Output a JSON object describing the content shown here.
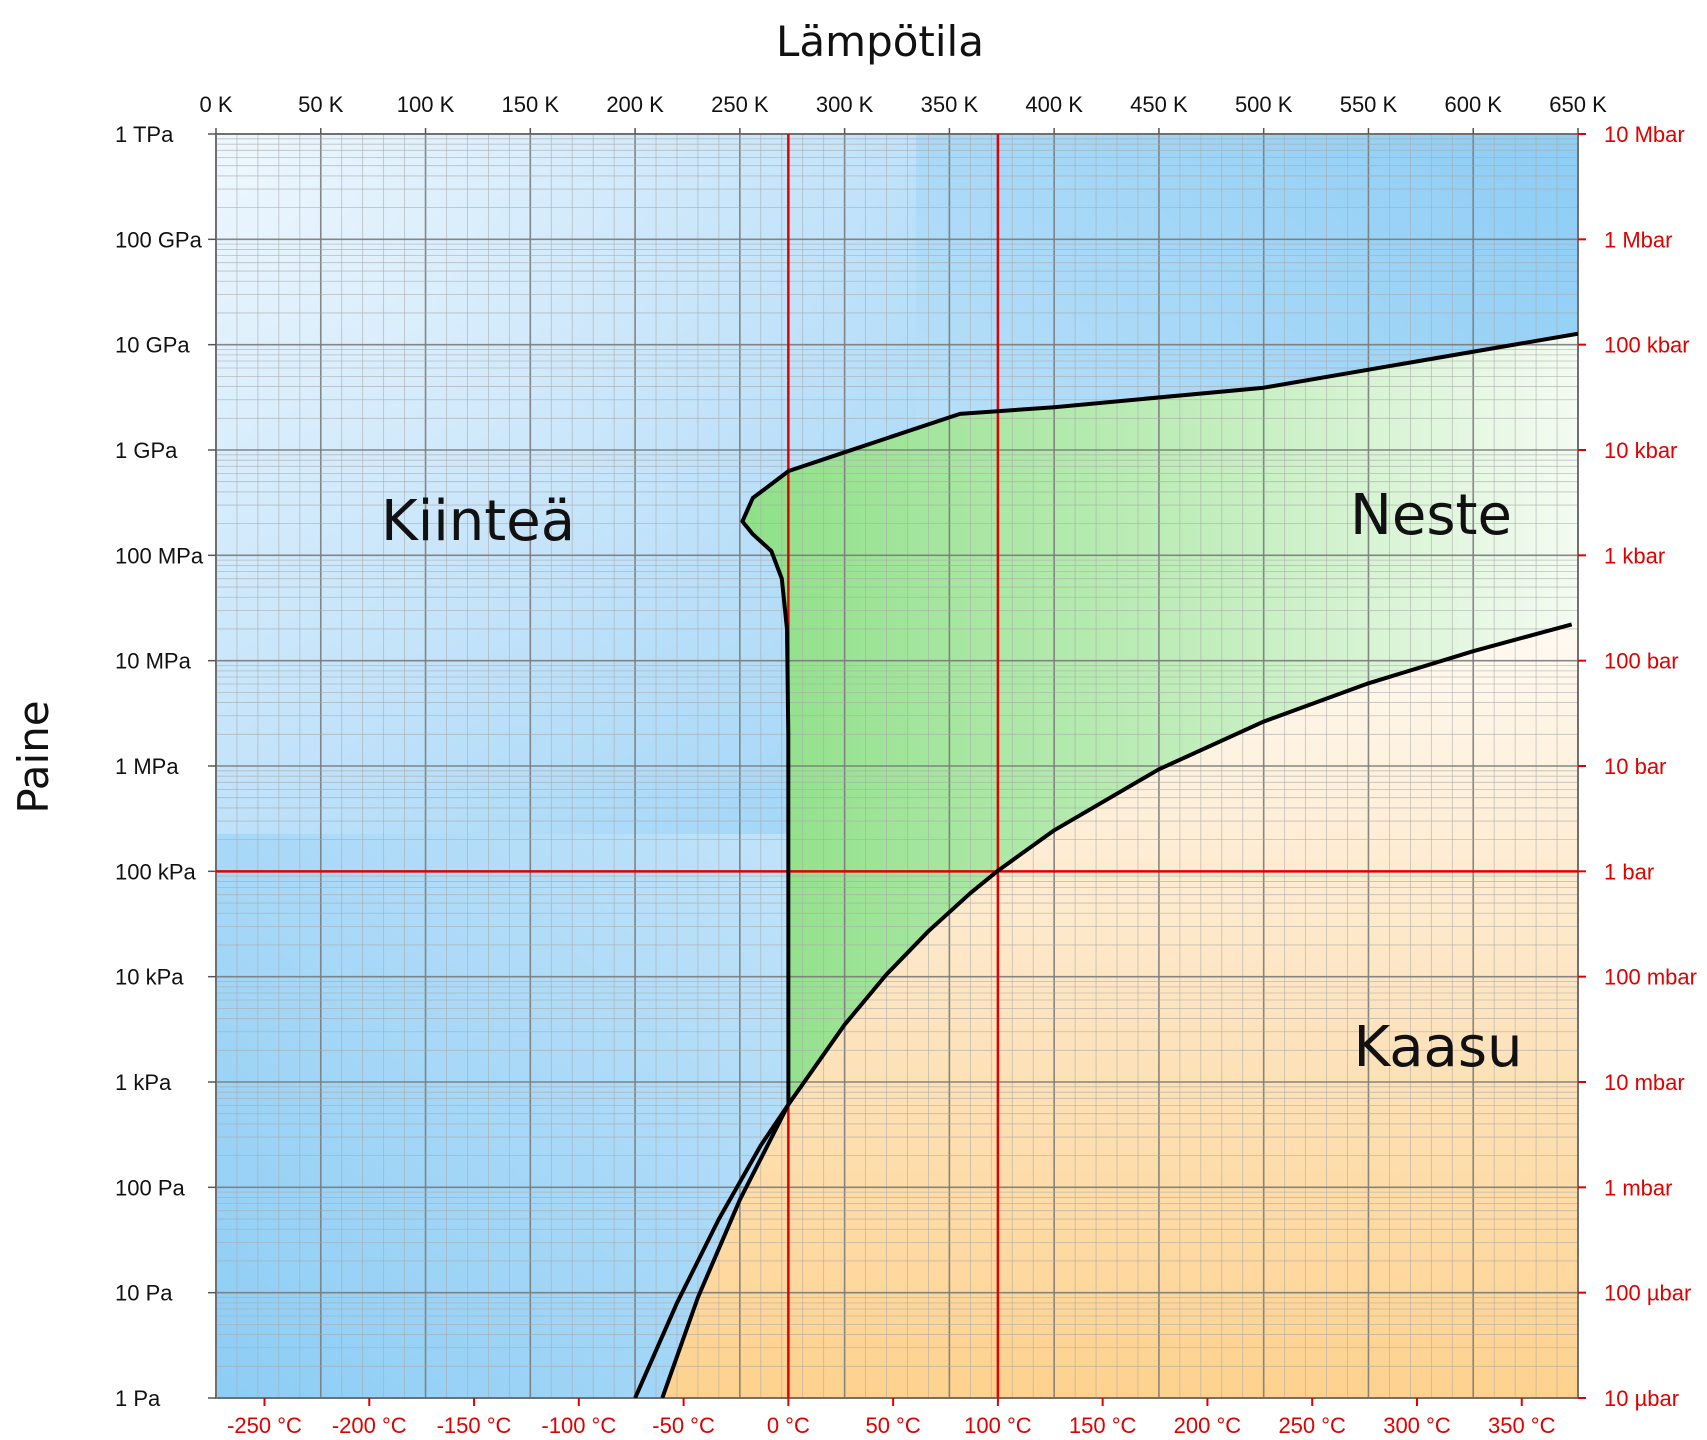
{
  "chart_data": {
    "type": "line",
    "title": "",
    "xlabel": "Lämpötila",
    "ylabel": "Paine",
    "x_unit": "K",
    "y_unit": "Pa",
    "xlim": [
      0,
      650
    ],
    "ylim": [
      1,
      1000000000000
    ],
    "yscale": "log",
    "grid": true,
    "kelvin_ticks": [
      {
        "value": 0,
        "label": "0 K"
      },
      {
        "value": 50,
        "label": "50 K"
      },
      {
        "value": 100,
        "label": "100 K"
      },
      {
        "value": 150,
        "label": "150 K"
      },
      {
        "value": 200,
        "label": "200 K"
      },
      {
        "value": 250,
        "label": "250 K"
      },
      {
        "value": 300,
        "label": "300 K"
      },
      {
        "value": 350,
        "label": "350 K"
      },
      {
        "value": 400,
        "label": "400 K"
      },
      {
        "value": 450,
        "label": "450 K"
      },
      {
        "value": 500,
        "label": "500 K"
      },
      {
        "value": 550,
        "label": "550 K"
      },
      {
        "value": 600,
        "label": "600 K"
      },
      {
        "value": 650,
        "label": "650 K"
      }
    ],
    "celsius_ticks": [
      {
        "value": 23.15,
        "label": "-250 °C"
      },
      {
        "value": 73.15,
        "label": "-200 °C"
      },
      {
        "value": 123.15,
        "label": "-150 °C"
      },
      {
        "value": 173.15,
        "label": "-100 °C"
      },
      {
        "value": 223.15,
        "label": "-50 °C"
      },
      {
        "value": 273.15,
        "label": "0 °C"
      },
      {
        "value": 323.15,
        "label": "50 °C"
      },
      {
        "value": 373.15,
        "label": "100 °C"
      },
      {
        "value": 423.15,
        "label": "150 °C"
      },
      {
        "value": 473.15,
        "label": "200 °C"
      },
      {
        "value": 523.15,
        "label": "250 °C"
      },
      {
        "value": 573.15,
        "label": "300 °C"
      },
      {
        "value": 623.15,
        "label": "350 °C"
      }
    ],
    "pascal_ticks": [
      {
        "value": 1000000000000,
        "label": "1 TPa"
      },
      {
        "value": 100000000000,
        "label": "100 GPa"
      },
      {
        "value": 10000000000,
        "label": "10 GPa"
      },
      {
        "value": 1000000000,
        "label": "1 GPa"
      },
      {
        "value": 100000000,
        "label": "100 MPa"
      },
      {
        "value": 10000000,
        "label": "10 MPa"
      },
      {
        "value": 1000000,
        "label": "1 MPa"
      },
      {
        "value": 100000,
        "label": "100 kPa"
      },
      {
        "value": 10000,
        "label": "10 kPa"
      },
      {
        "value": 1000,
        "label": "1 kPa"
      },
      {
        "value": 100,
        "label": "100 Pa"
      },
      {
        "value": 10,
        "label": "10 Pa"
      },
      {
        "value": 1,
        "label": "1 Pa"
      }
    ],
    "bar_ticks": [
      {
        "value": 1000000000000,
        "label": "10 Mbar"
      },
      {
        "value": 100000000000,
        "label": "1 Mbar"
      },
      {
        "value": 10000000000,
        "label": "100 kbar"
      },
      {
        "value": 1000000000,
        "label": "10 kbar"
      },
      {
        "value": 100000000,
        "label": "1 kbar"
      },
      {
        "value": 10000000,
        "label": "100 bar"
      },
      {
        "value": 1000000,
        "label": "10 bar"
      },
      {
        "value": 100000,
        "label": "1 bar"
      },
      {
        "value": 10000,
        "label": "100 mbar"
      },
      {
        "value": 1000,
        "label": "10 mbar"
      },
      {
        "value": 100,
        "label": "1 mbar"
      },
      {
        "value": 10,
        "label": "100 µbar"
      },
      {
        "value": 1,
        "label": "10 µbar"
      }
    ],
    "reference_lines": {
      "temperatures_K": [
        273.15,
        373.15
      ],
      "pressures_Pa": [
        100000
      ],
      "color": "#e00000"
    },
    "boundaries": {
      "vaporization": [
        [
          200,
          1.0
        ],
        [
          220,
          8
        ],
        [
          240,
          50
        ],
        [
          260,
          250
        ],
        [
          273.16,
          611.7
        ],
        [
          300,
          3500
        ],
        [
          320,
          10500
        ],
        [
          340,
          27000
        ],
        [
          360,
          62000
        ],
        [
          373.15,
          101325
        ],
        [
          400,
          245000
        ],
        [
          450,
          930000
        ],
        [
          500,
          2640000
        ],
        [
          550,
          6100000
        ],
        [
          600,
          12300000
        ],
        [
          647,
          22100000
        ]
      ],
      "sublimation": [
        [
          213,
          1.0
        ],
        [
          230,
          9
        ],
        [
          250,
          76
        ],
        [
          273.16,
          611.7
        ]
      ],
      "melting": [
        [
          273.16,
          611.7
        ],
        [
          273.14,
          2000000
        ],
        [
          272.5,
          20000000
        ],
        [
          270,
          60000000
        ],
        [
          265,
          110000000
        ],
        [
          256,
          160000000
        ],
        [
          251.2,
          209900000
        ],
        [
          256.2,
          350000000
        ],
        [
          273.31,
          632400000
        ],
        [
          300,
          950000000
        ],
        [
          355,
          2200000000
        ],
        [
          400,
          2550000000
        ],
        [
          500,
          3900000000
        ],
        [
          650,
          12700000000
        ]
      ]
    },
    "regions": [
      {
        "label": "Kiinteä",
        "color": "#8dcdf5"
      },
      {
        "label": "Neste",
        "color": "#9ee59a"
      },
      {
        "label": "Kaasu",
        "color": "#fed28e"
      }
    ],
    "annotations": [
      "Kiinteä",
      "Neste",
      "Kaasu"
    ]
  }
}
